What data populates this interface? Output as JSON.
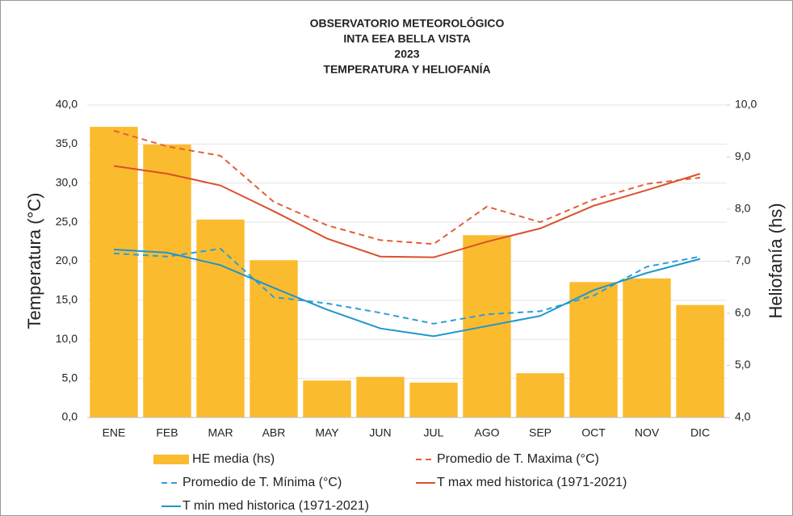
{
  "chart_data": {
    "type": "bar-line",
    "title": [
      "OBSERVATORIO METEOROLÓGICO",
      "INTA EEA BELLA VISTA",
      "2023",
      "TEMPERATURA Y HELIOFANÍA"
    ],
    "y_label": "Temperatura (°C)",
    "y2_label": "Heliofanía (hs)",
    "categories": [
      "ENE",
      "FEB",
      "MAR",
      "ABR",
      "MAY",
      "JUN",
      "JUL",
      "AGO",
      "SEP",
      "OCT",
      "NOV",
      "DIC"
    ],
    "ylim": [
      0,
      40
    ],
    "yticks": [
      {
        "value": 0,
        "label": "0,0"
      },
      {
        "value": 5,
        "label": "5,0"
      },
      {
        "value": 10,
        "label": "10,0"
      },
      {
        "value": 15,
        "label": "15,0"
      },
      {
        "value": 20,
        "label": "20,0"
      },
      {
        "value": 25,
        "label": "25,0"
      },
      {
        "value": 30,
        "label": "30,0"
      },
      {
        "value": 35,
        "label": "35,0"
      },
      {
        "value": 40,
        "label": "40,0"
      }
    ],
    "y2lim": [
      4,
      10
    ],
    "y2ticks": [
      {
        "value": 4,
        "label": "4,0"
      },
      {
        "value": 5,
        "label": "5,0"
      },
      {
        "value": 6,
        "label": "6,0"
      },
      {
        "value": 7,
        "label": "7,0"
      },
      {
        "value": 8,
        "label": "8,0"
      },
      {
        "value": 9,
        "label": "9,0"
      },
      {
        "value": 10,
        "label": "10,0"
      }
    ],
    "grid": true,
    "series": [
      {
        "name": "HE media (hs)",
        "type": "bar",
        "axis": "y2",
        "color": "#fbbb2e",
        "values": [
          9.58,
          9.24,
          7.8,
          7.02,
          4.71,
          4.78,
          4.67,
          7.5,
          4.85,
          6.6,
          6.67,
          6.16
        ]
      },
      {
        "name": "Promedio de T. Maxima (°C)",
        "type": "line",
        "dash": true,
        "color": "#e0603a",
        "values": [
          36.7,
          34.7,
          33.5,
          27.6,
          24.6,
          22.7,
          22.2,
          27.0,
          25.0,
          27.9,
          29.9,
          30.7
        ]
      },
      {
        "name": "Promedio de T. Mínima (°C)",
        "type": "line",
        "dash": true,
        "color": "#2a9fd6",
        "values": [
          21.0,
          20.6,
          21.6,
          15.4,
          14.6,
          13.4,
          12.0,
          13.2,
          13.6,
          15.6,
          19.3,
          20.6
        ]
      },
      {
        "name": "T max med historica (1971-2021)",
        "type": "line",
        "dash": false,
        "color": "#d9512c",
        "values": [
          32.2,
          31.2,
          29.7,
          26.4,
          22.9,
          20.6,
          20.5,
          22.5,
          24.2,
          27.1,
          29.1,
          31.2
        ]
      },
      {
        "name": "T min med historica (1971-2021)",
        "type": "line",
        "dash": false,
        "color": "#1f95cf",
        "values": [
          21.5,
          21.1,
          19.5,
          16.6,
          13.8,
          11.4,
          10.4,
          11.7,
          13.0,
          16.3,
          18.5,
          20.3
        ]
      }
    ]
  }
}
